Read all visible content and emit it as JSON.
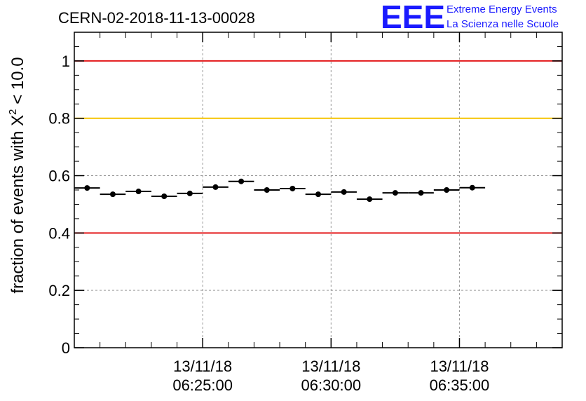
{
  "chart_data": {
    "type": "scatter",
    "title": "CERN-02-2018-11-13-00028",
    "ylabel": {
      "prefix": "fraction of events with ",
      "chi": "X",
      "sup": "2",
      "suffix": " < 10.0"
    },
    "xlabel": "",
    "ylim": [
      0,
      1.1
    ],
    "xlim_minutes": [
      20.0,
      39.0
    ],
    "y_ticks": [
      {
        "value": 0,
        "label": "0"
      },
      {
        "value": 0.2,
        "label": "0.2"
      },
      {
        "value": 0.4,
        "label": "0.4"
      },
      {
        "value": 0.6,
        "label": "0.6"
      },
      {
        "value": 0.8,
        "label": "0.8"
      },
      {
        "value": 1.0,
        "label": "1"
      }
    ],
    "x_ticks": [
      {
        "minute": 25,
        "date": "13/11/18",
        "time": "06:25:00"
      },
      {
        "minute": 30,
        "date": "13/11/18",
        "time": "06:30:00"
      },
      {
        "minute": 35,
        "date": "13/11/18",
        "time": "06:35:00"
      }
    ],
    "x_minor_ticks_minutes": [
      21,
      22,
      23,
      24,
      26,
      27,
      28,
      29,
      31,
      32,
      33,
      34,
      36,
      37,
      38
    ],
    "reference_lines": [
      {
        "y": 1.0,
        "color": "#e31a1c"
      },
      {
        "y": 0.8,
        "color": "#f5c400"
      },
      {
        "y": 0.4,
        "color": "#e31a1c"
      }
    ],
    "grid": true,
    "bin_width_minutes": 1.0,
    "points": [
      {
        "x_minute": 20.5,
        "y": 0.557
      },
      {
        "x_minute": 21.5,
        "y": 0.535
      },
      {
        "x_minute": 22.5,
        "y": 0.545
      },
      {
        "x_minute": 23.5,
        "y": 0.528
      },
      {
        "x_minute": 24.5,
        "y": 0.538
      },
      {
        "x_minute": 25.5,
        "y": 0.56
      },
      {
        "x_minute": 26.5,
        "y": 0.58
      },
      {
        "x_minute": 27.5,
        "y": 0.55
      },
      {
        "x_minute": 28.5,
        "y": 0.555
      },
      {
        "x_minute": 29.5,
        "y": 0.535
      },
      {
        "x_minute": 30.5,
        "y": 0.543
      },
      {
        "x_minute": 31.5,
        "y": 0.518
      },
      {
        "x_minute": 32.5,
        "y": 0.54
      },
      {
        "x_minute": 33.5,
        "y": 0.54
      },
      {
        "x_minute": 34.5,
        "y": 0.55
      },
      {
        "x_minute": 35.5,
        "y": 0.558
      }
    ]
  },
  "logo": {
    "mark": "EEE",
    "line1": "Extreme Energy Events",
    "line2": "La Scienza nelle Scuole",
    "color": "#1a1aff"
  }
}
